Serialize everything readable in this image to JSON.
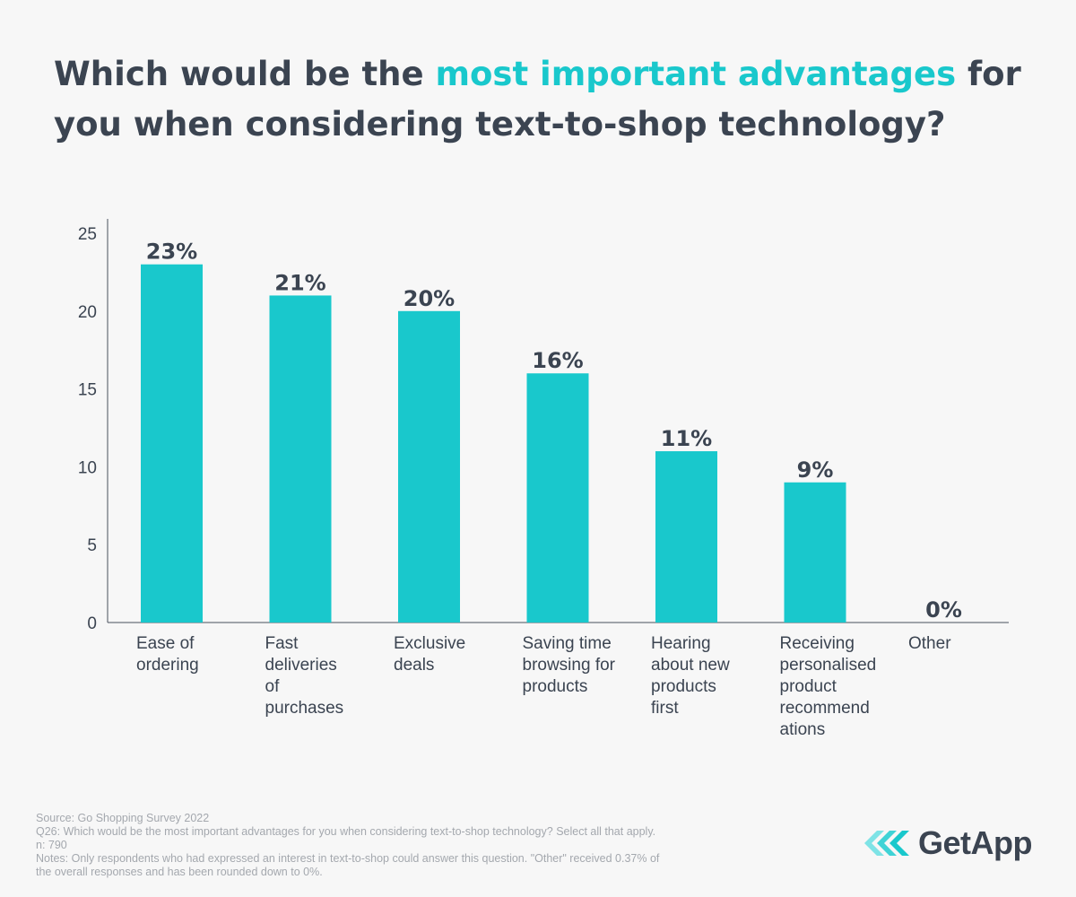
{
  "title": {
    "prefix": "Which would be the ",
    "highlight": "most important advantages",
    "suffix": " for you when considering text-to-shop technology?"
  },
  "colors": {
    "accent": "#19c8cc",
    "text": "#3b4451",
    "muted": "#a4a8ae",
    "background": "#f7f7f7"
  },
  "chart_data": {
    "type": "bar",
    "categories": [
      [
        "Ease of",
        "ordering"
      ],
      [
        "Fast",
        "deliveries",
        "of",
        "purchases"
      ],
      [
        "Exclusive",
        "deals"
      ],
      [
        "Saving time",
        "browsing for",
        "products"
      ],
      [
        "Hearing",
        "about new",
        "products",
        "first"
      ],
      [
        "Receiving",
        "personalised",
        "product",
        "recommend",
        "ations"
      ],
      [
        "Other"
      ]
    ],
    "values": [
      23,
      21,
      20,
      16,
      11,
      9,
      0
    ],
    "data_labels": [
      "23%",
      "21%",
      "20%",
      "16%",
      "11%",
      "9%",
      "0%"
    ],
    "yticks": [
      0,
      5,
      10,
      15,
      20,
      25
    ],
    "ylim": [
      0,
      25
    ],
    "grid": false,
    "legend": "none"
  },
  "footer": {
    "source": "Source: Go Shopping Survey 2022",
    "question": "Q26: Which would be the most important advantages for you when considering text-to-shop technology? Select all that apply.",
    "n": "n: 790",
    "notes_line1": "Notes: Only respondents who had expressed an interest in text-to-shop could answer this question. \"Other\" received 0.37% of",
    "notes_line2": "the overall responses and has been rounded down to 0%."
  },
  "logo": {
    "name": "GetApp",
    "icon": "getapp-chevrons-icon"
  }
}
